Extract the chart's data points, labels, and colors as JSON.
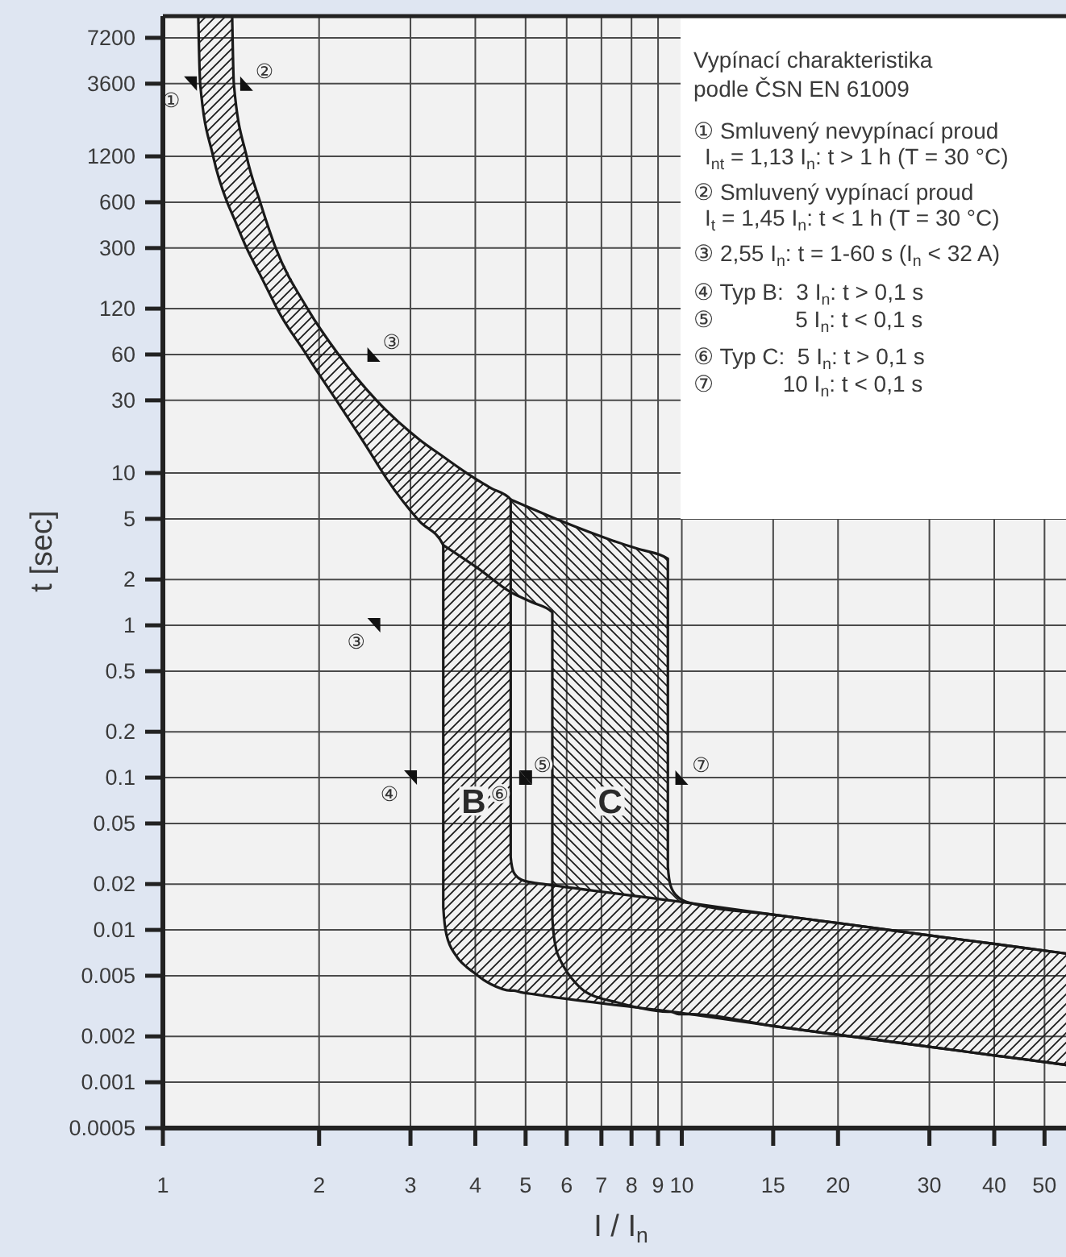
{
  "chart_data": {
    "type": "line",
    "title": "Vypínací charakteristika",
    "subtitle": "podle ČSN EN 61009",
    "xlabel": "I / I$_{n}$",
    "ylabel": "t [sec]",
    "log": "xy",
    "grid": true,
    "xlim": [
      1,
      55
    ],
    "ylim": [
      0.0005,
      10000
    ],
    "xticks": [
      1,
      2,
      3,
      4,
      5,
      6,
      7,
      8,
      9,
      10,
      15,
      20,
      30,
      40,
      50
    ],
    "yticks": [
      0.0005,
      0.001,
      0.002,
      0.005,
      0.01,
      0.02,
      0.05,
      0.1,
      0.2,
      0.5,
      1,
      2,
      5,
      10,
      30,
      60,
      120,
      300,
      600,
      1200,
      3600,
      7200
    ],
    "series": [
      {
        "name": "B",
        "color": "#1a1a1a",
        "x": [
          1.17,
          1.18,
          1.25,
          1.33,
          1.36,
          1.37,
          1.45,
          1.54,
          1.65,
          1.66,
          1.89,
          1.9,
          2.16,
          2.18,
          2.58,
          2.6,
          3.12,
          3.47,
          3.47,
          3.52,
          3.67,
          3.85,
          3.96,
          4.15,
          4.29,
          4.68,
          4.68,
          4.74,
          4.89,
          5.14,
          5.41,
          10.4,
          15,
          20,
          30,
          40,
          55
        ],
        "values": [
          10000,
          3600,
          1200,
          600,
          502,
          473,
          300,
          200,
          125,
          120,
          60,
          58.3,
          30,
          28.6,
          11.7,
          11.2,
          4.84,
          3.36,
          0.0141,
          0.0093,
          0.0068,
          0.0057,
          0.0053,
          0.0047,
          0.0044,
          0.004,
          0.004,
          0.004,
          0.0039,
          0.0038,
          0.0037,
          0.0028,
          0.00234,
          0.00205,
          0.00171,
          0.0015,
          0.0013
        ],
        "lower": [
          10000,
          3600,
          1200,
          600,
          502,
          473,
          300,
          200,
          125,
          120,
          60,
          58.3,
          30,
          28.6,
          11.7,
          11.2,
          4.84,
          3.36,
          0.0141,
          0.0093,
          0.0068,
          0.0057,
          0.0053,
          0.0047,
          0.0044,
          0.004,
          0.004,
          0.004,
          0.0039,
          0.0038,
          0.0037,
          0.0028,
          0.00234,
          0.00205,
          0.00171,
          0.0015,
          0.0013
        ],
        "upper": [
          10000,
          10000,
          10000,
          10000,
          10000,
          3600,
          1200,
          600,
          300,
          288,
          124,
          120,
          62.8,
          60,
          30,
          29.3,
          16.6,
          12.8,
          12.8,
          12.4,
          11.2,
          10,
          9.4,
          8.5,
          7.95,
          6.7,
          0.03,
          0.024,
          0.0215,
          0.0205,
          0.02,
          0.015,
          0.0126,
          0.0111,
          0.0092,
          0.0081,
          0.007
        ]
      },
      {
        "color": "#1a1a1a",
        "x": [
          1.36,
          1.37,
          1.45,
          1.54,
          1.65,
          1.9,
          2.18,
          2.58,
          3.12,
          3.47,
          3.85,
          4.15,
          4.29,
          4.68,
          4.68,
          4.74,
          4.89,
          5.14,
          5.41,
          10.4,
          15,
          20,
          30,
          40,
          55
        ],
        "values": [
          10000,
          3600,
          1200,
          600,
          300,
          120,
          60,
          30,
          16.6,
          12.8,
          10,
          8.5,
          7.95,
          6.7,
          0.03,
          0.024,
          0.0215,
          0.0205,
          0.02,
          0.015,
          0.0126,
          0.0111,
          0.0092,
          0.0081,
          0.007
        ]
      },
      {
        "name": "C",
        "color": "#1a1a1a",
        "x": [
          3.47,
          4.06,
          4.68,
          5.14,
          5.63,
          5.63,
          5.72,
          5.8,
          5.93,
          6.36,
          7.1,
          7.36,
          8.2,
          9.4,
          9.4,
          9.52,
          9.86,
          10.4,
          15,
          20,
          30,
          40,
          55
        ],
        "values": [
          3.36,
          2.35,
          1.65,
          1.42,
          1.22,
          0.0119,
          0.0076,
          0.0066,
          0.0057,
          0.0042,
          0.0035,
          0.0034,
          0.0031,
          0.0029,
          0.0029,
          0.0029,
          0.0028,
          0.0028,
          0.00234,
          0.00205,
          0.00171,
          0.0015,
          0.0013
        ],
        "lower": [
          null,
          null,
          1.65,
          1.42,
          1.22,
          0.0119,
          0.0076,
          0.0066,
          0.0057,
          0.0042,
          0.0035,
          0.0034,
          0.0031,
          0.0029,
          0.0029,
          0.0029,
          0.0028,
          0.0028,
          0.00234,
          0.00205,
          0.00171,
          0.0015,
          0.0013
        ],
        "upper": [
          null,
          null,
          6.7,
          5.83,
          5.12,
          5.12,
          5.0,
          4.9,
          4.76,
          4.35,
          3.77,
          3.6,
          3.19,
          2.74,
          0.026,
          0.0194,
          0.0163,
          0.015,
          0.0126,
          0.0111,
          0.0092,
          0.0081,
          0.007
        ]
      },
      {
        "color": "#1a1a1a",
        "x": [
          4.68,
          5.14,
          5.8,
          7.36,
          8.2,
          9.4,
          9.4,
          9.52,
          9.86,
          10.4,
          15,
          20,
          30,
          40,
          55
        ],
        "values": [
          6.7,
          5.83,
          4.9,
          3.6,
          3.19,
          2.74,
          0.026,
          0.0194,
          0.0163,
          0.015,
          0.0126,
          0.0111,
          0.0092,
          0.0081,
          0.007
        ]
      },
      {
        "type": "scatter",
        "color": "#111111",
        "marker": "triangle",
        "x": [
          1.13,
          1.45,
          2.55,
          2.55,
          3,
          5,
          5,
          10
        ],
        "values": [
          3600,
          3600,
          60,
          1,
          0.1,
          0.1,
          0.1,
          0.1
        ],
        "value_labels": [
          "①",
          "②",
          "③",
          "③",
          "④",
          "⑤",
          "⑥",
          "⑦"
        ]
      }
    ],
    "annotations": [
      "① Smluvený nevypínací proud",
      "I$_{nt}$ = 1,13 I$_{n}$: t > 1 h (T = 30 °C)",
      "② Smluvený vypínací proud",
      "I$_{t}$ = 1,45 I$_{n}$: t < 1 h (T = 30 °C)",
      "③ 2,55 I$_{n}$: t = 1-60 s (I$_{n}$ < 32 A)",
      "④ Typ B:  3 I$_{n}$: t > 0,1 s",
      "⑤             5 I$_{n}$: t < 0,1 s",
      "⑥ Typ C:  5 I$_{n}$: t > 0,1 s",
      "⑦           10 I$_{n}$: t < 0,1 s"
    ]
  }
}
